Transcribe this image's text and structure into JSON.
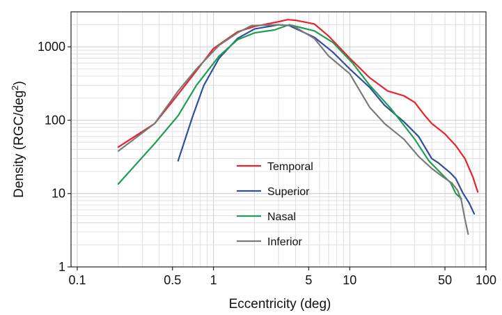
{
  "chart_data": {
    "type": "line",
    "xlabel": "Eccentricity (deg)",
    "ylabel_main": "Density (RGC/deg",
    "ylabel_sup": "2",
    "ylabel_close": ")",
    "x_scale": "log",
    "y_scale": "log",
    "xlim": [
      0.09,
      100
    ],
    "ylim": [
      1,
      3000
    ],
    "x_ticks": [
      {
        "value": 0.1,
        "label": "0.1"
      },
      {
        "value": 0.5,
        "label": "0.5"
      },
      {
        "value": 1,
        "label": "1"
      },
      {
        "value": 5,
        "label": "5"
      },
      {
        "value": 10,
        "label": "10"
      },
      {
        "value": 50,
        "label": "50"
      },
      {
        "value": 100,
        "label": "100"
      }
    ],
    "y_ticks": [
      {
        "value": 1,
        "label": "1"
      },
      {
        "value": 10,
        "label": "10"
      },
      {
        "value": 100,
        "label": "100"
      },
      {
        "value": 1000,
        "label": "1000"
      }
    ],
    "grid": true,
    "legend_position": "center",
    "series": [
      {
        "name": "Temporal",
        "color": "#e8232d",
        "points": [
          [
            0.2,
            43
          ],
          [
            0.37,
            90
          ],
          [
            0.5,
            180
          ],
          [
            0.7,
            400
          ],
          [
            1.0,
            950
          ],
          [
            1.5,
            1600
          ],
          [
            2.0,
            1900
          ],
          [
            3.0,
            2200
          ],
          [
            3.5,
            2350
          ],
          [
            4.0,
            2300
          ],
          [
            5.5,
            2050
          ],
          [
            7.0,
            1400
          ],
          [
            10.0,
            700
          ],
          [
            14.0,
            380
          ],
          [
            19.0,
            250
          ],
          [
            25.0,
            215
          ],
          [
            30.0,
            175
          ],
          [
            35.0,
            120
          ],
          [
            40.0,
            90
          ],
          [
            50.0,
            65
          ],
          [
            60.0,
            45
          ],
          [
            70.0,
            30
          ],
          [
            80.0,
            17
          ],
          [
            87.0,
            10.5
          ]
        ]
      },
      {
        "name": "Superior",
        "color": "#2d4f9e",
        "points": [
          [
            0.55,
            28
          ],
          [
            0.7,
            110
          ],
          [
            0.85,
            300
          ],
          [
            1.1,
            700
          ],
          [
            1.5,
            1300
          ],
          [
            2.0,
            1750
          ],
          [
            3.0,
            2000
          ],
          [
            3.6,
            1950
          ],
          [
            5.5,
            1350
          ],
          [
            7.5,
            850
          ],
          [
            10.0,
            500
          ],
          [
            14.0,
            280
          ],
          [
            18.0,
            160
          ],
          [
            25.0,
            95
          ],
          [
            32.0,
            60
          ],
          [
            40.0,
            30
          ],
          [
            45.0,
            26
          ],
          [
            55.0,
            19
          ],
          [
            60.0,
            16
          ],
          [
            68.0,
            10
          ],
          [
            75.0,
            7.5
          ],
          [
            82.0,
            5.3
          ]
        ]
      },
      {
        "name": "Nasal",
        "color": "#1f9d55",
        "points": [
          [
            0.2,
            13.5
          ],
          [
            0.37,
            48
          ],
          [
            0.55,
            115
          ],
          [
            0.75,
            300
          ],
          [
            1.1,
            750
          ],
          [
            1.5,
            1250
          ],
          [
            2.0,
            1550
          ],
          [
            2.8,
            1700
          ],
          [
            3.6,
            2000
          ],
          [
            5.5,
            1650
          ],
          [
            7.5,
            1150
          ],
          [
            10.5,
            600
          ],
          [
            14.0,
            300
          ],
          [
            20.0,
            145
          ],
          [
            30.0,
            55
          ],
          [
            38.0,
            28
          ],
          [
            48.0,
            18
          ],
          [
            55.0,
            14
          ],
          [
            60.0,
            10
          ],
          [
            66.0,
            8.5
          ]
        ]
      },
      {
        "name": "Inferior",
        "color": "#7a7a7a",
        "points": [
          [
            0.2,
            38
          ],
          [
            0.37,
            90
          ],
          [
            0.55,
            250
          ],
          [
            0.75,
            500
          ],
          [
            1.1,
            1050
          ],
          [
            1.5,
            1550
          ],
          [
            1.9,
            1950
          ],
          [
            3.0,
            2000
          ],
          [
            3.8,
            1950
          ],
          [
            5.5,
            1300
          ],
          [
            7.0,
            750
          ],
          [
            10.0,
            430
          ],
          [
            14.0,
            150
          ],
          [
            18.0,
            90
          ],
          [
            25.0,
            55
          ],
          [
            32.0,
            32
          ],
          [
            40.0,
            22
          ],
          [
            48.0,
            17
          ],
          [
            56.0,
            14
          ],
          [
            62.0,
            11
          ],
          [
            66.0,
            8
          ],
          [
            70.0,
            4.5
          ],
          [
            74.0,
            2.8
          ]
        ]
      }
    ]
  }
}
